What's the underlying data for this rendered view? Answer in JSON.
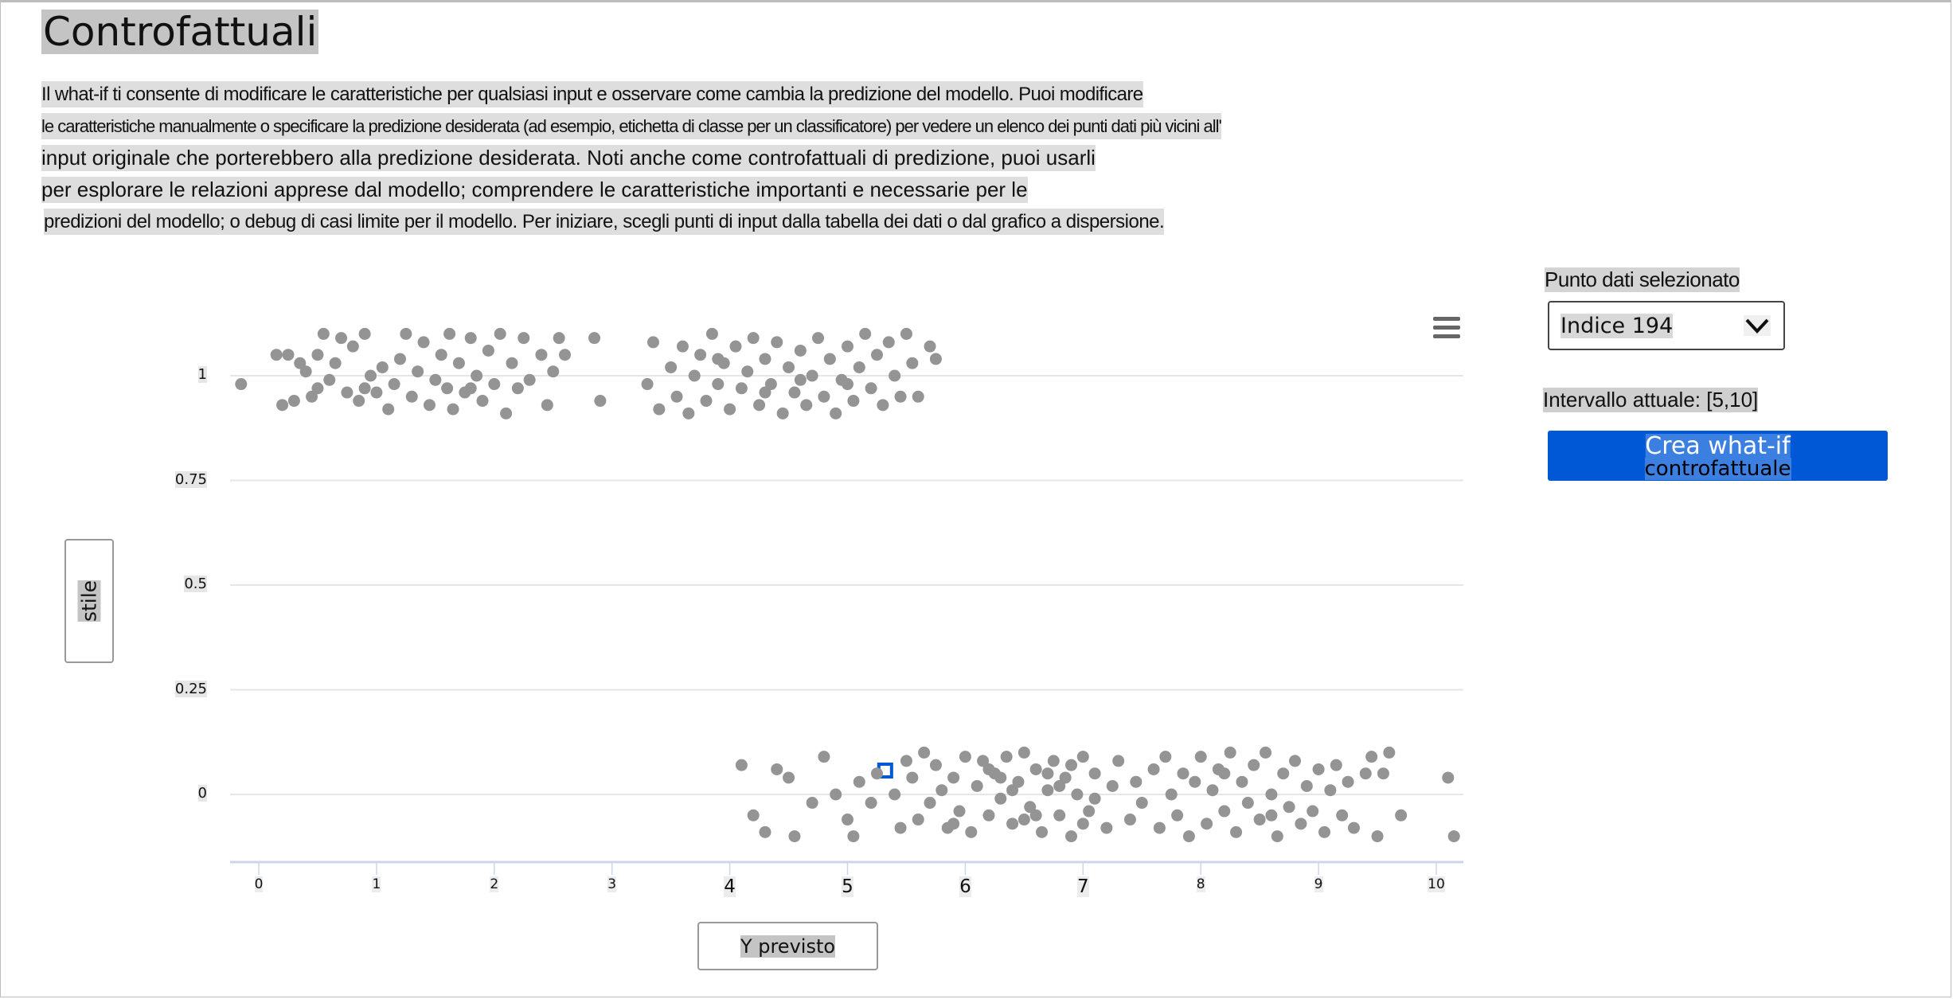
{
  "header": {
    "title": "Controfattuali"
  },
  "description": [
    "Il what-if ti consente di modificare le caratteristiche per qualsiasi input e osservare come cambia la predizione del modello. Puoi modificare",
    "le caratteristiche manualmente o specificare la predizione desiderata (ad esempio, etichetta di classe per un classificatore) per vedere un elenco dei punti dati più vicini all'",
    "input originale che porterebbero alla predizione desiderata. Noti anche come controfattuali di predizione, puoi usarli",
    "per esplorare le relazioni apprese dal modello; comprendere le caratteristiche importanti e necessarie per le",
    "predizioni del modello; o debug di casi limite per il modello. Per iniziare, scegli punti di input dalla tabella dei dati o dal grafico a dispersione."
  ],
  "panel": {
    "selected_label": "Punto dati selezionato",
    "selected_value": "Indice 194",
    "range_label": "Intervallo attuale: [5,10]",
    "button_line1": "Crea what-if",
    "button_line2": "controfattuale"
  },
  "icons": {
    "menu": "hamburger-menu-icon",
    "dropdown": "chevron-down-icon"
  },
  "colors": {
    "point": "#949494",
    "selected": "#0058d6",
    "button": "#0058d6",
    "grid": "#e6e6e6",
    "axis": "#ccd6eb"
  },
  "chart_data": {
    "type": "scatter",
    "xlabel": "Y previsto",
    "ylabel": "stile",
    "xlim": [
      -0.24,
      10.23
    ],
    "ylim": [
      -0.16,
      1.2
    ],
    "x_ticks": [
      "0",
      "1",
      "2",
      "3",
      "4",
      "5",
      "6",
      "7",
      "8",
      "9",
      "10"
    ],
    "y_ticks": [
      "0",
      "0.25",
      "0.5",
      "0.75",
      "1"
    ],
    "grid": "horizontal",
    "selected_point": [
      5.32,
      0.057
    ],
    "points": [
      [
        -0.15,
        0.98
      ],
      [
        0.15,
        1.05
      ],
      [
        0.2,
        0.93
      ],
      [
        0.25,
        1.05
      ],
      [
        0.3,
        0.94
      ],
      [
        0.35,
        1.03
      ],
      [
        0.4,
        1.01
      ],
      [
        0.45,
        0.95
      ],
      [
        0.5,
        0.97
      ],
      [
        0.5,
        1.05
      ],
      [
        0.55,
        1.1
      ],
      [
        0.6,
        0.99
      ],
      [
        0.65,
        1.03
      ],
      [
        0.7,
        1.09
      ],
      [
        0.75,
        0.96
      ],
      [
        0.8,
        1.07
      ],
      [
        0.85,
        0.94
      ],
      [
        0.9,
        1.1
      ],
      [
        0.95,
        1.0
      ],
      [
        1.0,
        0.96
      ],
      [
        1.05,
        1.02
      ],
      [
        1.1,
        0.92
      ],
      [
        1.15,
        0.98
      ],
      [
        1.2,
        1.04
      ],
      [
        1.25,
        1.1
      ],
      [
        1.3,
        0.95
      ],
      [
        1.35,
        1.01
      ],
      [
        1.4,
        1.08
      ],
      [
        1.45,
        0.93
      ],
      [
        1.5,
        0.99
      ],
      [
        1.55,
        1.05
      ],
      [
        1.6,
        0.97
      ],
      [
        1.62,
        1.1
      ],
      [
        1.65,
        0.92
      ],
      [
        1.7,
        1.03
      ],
      [
        1.75,
        0.96
      ],
      [
        1.8,
        1.09
      ],
      [
        1.85,
        1.0
      ],
      [
        1.9,
        0.94
      ],
      [
        1.95,
        1.06
      ],
      [
        2.0,
        0.98
      ],
      [
        2.05,
        1.1
      ],
      [
        2.1,
        0.91
      ],
      [
        2.15,
        1.03
      ],
      [
        2.2,
        0.97
      ],
      [
        2.25,
        1.09
      ],
      [
        2.3,
        0.99
      ],
      [
        2.4,
        1.05
      ],
      [
        2.45,
        0.93
      ],
      [
        2.5,
        1.01
      ],
      [
        2.55,
        1.09
      ],
      [
        2.6,
        1.05
      ],
      [
        2.85,
        1.09
      ],
      [
        2.9,
        0.94
      ],
      [
        3.3,
        0.98
      ],
      [
        3.35,
        1.08
      ],
      [
        3.4,
        0.92
      ],
      [
        3.5,
        1.02
      ],
      [
        3.55,
        0.95
      ],
      [
        3.6,
        1.07
      ],
      [
        3.65,
        0.91
      ],
      [
        3.7,
        1.0
      ],
      [
        3.75,
        1.05
      ],
      [
        3.8,
        0.94
      ],
      [
        3.85,
        1.1
      ],
      [
        3.9,
        0.98
      ],
      [
        3.95,
        1.03
      ],
      [
        4.0,
        0.92
      ],
      [
        4.05,
        1.07
      ],
      [
        4.1,
        0.97
      ],
      [
        4.15,
        1.01
      ],
      [
        4.2,
        1.09
      ],
      [
        4.25,
        0.93
      ],
      [
        4.3,
        1.04
      ],
      [
        4.35,
        0.98
      ],
      [
        4.4,
        1.08
      ],
      [
        4.45,
        0.91
      ],
      [
        4.5,
        1.02
      ],
      [
        4.55,
        0.96
      ],
      [
        4.6,
        1.06
      ],
      [
        4.65,
        0.93
      ],
      [
        4.7,
        1.0
      ],
      [
        4.75,
        1.09
      ],
      [
        4.8,
        0.95
      ],
      [
        4.85,
        1.04
      ],
      [
        4.9,
        0.91
      ],
      [
        4.95,
        0.99
      ],
      [
        5.0,
        1.07
      ],
      [
        5.05,
        0.94
      ],
      [
        5.1,
        1.02
      ],
      [
        5.15,
        1.1
      ],
      [
        5.2,
        0.97
      ],
      [
        5.25,
        1.05
      ],
      [
        5.3,
        0.93
      ],
      [
        5.35,
        1.08
      ],
      [
        5.4,
        1.0
      ],
      [
        5.45,
        0.95
      ],
      [
        5.5,
        1.1
      ],
      [
        5.55,
        1.03
      ],
      [
        5.6,
        0.95
      ],
      [
        5.7,
        1.07
      ],
      [
        5.75,
        1.04
      ],
      [
        4.3,
        0.96
      ],
      [
        4.6,
        0.99
      ],
      [
        3.9,
        1.04
      ],
      [
        5.0,
        0.98
      ],
      [
        1.8,
        0.97
      ],
      [
        0.9,
        0.97
      ],
      [
        4.1,
        0.07
      ],
      [
        4.2,
        -0.05
      ],
      [
        4.3,
        -0.09
      ],
      [
        4.4,
        0.06
      ],
      [
        4.5,
        0.04
      ],
      [
        4.55,
        -0.1
      ],
      [
        4.7,
        -0.02
      ],
      [
        4.8,
        0.09
      ],
      [
        4.9,
        0.0
      ],
      [
        5.0,
        -0.06
      ],
      [
        5.05,
        -0.1
      ],
      [
        5.1,
        0.03
      ],
      [
        5.2,
        -0.02
      ],
      [
        5.25,
        0.05
      ],
      [
        5.4,
        0.0
      ],
      [
        5.45,
        -0.08
      ],
      [
        5.5,
        0.08
      ],
      [
        5.55,
        0.04
      ],
      [
        5.6,
        -0.06
      ],
      [
        5.65,
        0.1
      ],
      [
        5.7,
        -0.02
      ],
      [
        5.75,
        0.07
      ],
      [
        5.8,
        0.01
      ],
      [
        5.85,
        -0.08
      ],
      [
        5.9,
        0.04
      ],
      [
        5.95,
        -0.04
      ],
      [
        6.0,
        0.09
      ],
      [
        6.05,
        -0.09
      ],
      [
        6.1,
        0.02
      ],
      [
        6.15,
        0.08
      ],
      [
        6.2,
        -0.05
      ],
      [
        6.25,
        0.05
      ],
      [
        6.3,
        -0.01
      ],
      [
        6.35,
        0.09
      ],
      [
        6.4,
        -0.07
      ],
      [
        6.45,
        0.03
      ],
      [
        6.5,
        0.1
      ],
      [
        6.55,
        -0.03
      ],
      [
        6.6,
        0.06
      ],
      [
        6.65,
        -0.09
      ],
      [
        6.7,
        0.01
      ],
      [
        6.75,
        0.08
      ],
      [
        6.8,
        -0.05
      ],
      [
        6.85,
        0.04
      ],
      [
        6.9,
        -0.1
      ],
      [
        6.95,
        0.0
      ],
      [
        7.0,
        0.09
      ],
      [
        7.05,
        -0.04
      ],
      [
        7.1,
        0.05
      ],
      [
        7.2,
        -0.08
      ],
      [
        7.25,
        0.02
      ],
      [
        7.3,
        0.08
      ],
      [
        7.4,
        -0.06
      ],
      [
        7.45,
        0.03
      ],
      [
        7.5,
        -0.02
      ],
      [
        7.6,
        0.06
      ],
      [
        7.65,
        -0.08
      ],
      [
        7.7,
        0.09
      ],
      [
        7.75,
        0.0
      ],
      [
        7.8,
        -0.05
      ],
      [
        7.85,
        0.05
      ],
      [
        7.9,
        -0.1
      ],
      [
        7.95,
        0.03
      ],
      [
        8.0,
        0.09
      ],
      [
        8.05,
        -0.07
      ],
      [
        8.1,
        0.01
      ],
      [
        8.15,
        0.06
      ],
      [
        8.2,
        -0.04
      ],
      [
        8.25,
        0.1
      ],
      [
        8.3,
        -0.09
      ],
      [
        8.35,
        0.03
      ],
      [
        8.4,
        -0.02
      ],
      [
        8.45,
        0.07
      ],
      [
        8.5,
        -0.06
      ],
      [
        8.55,
        0.1
      ],
      [
        8.6,
        0.0
      ],
      [
        8.65,
        -0.1
      ],
      [
        8.7,
        0.05
      ],
      [
        8.75,
        -0.03
      ],
      [
        8.8,
        0.08
      ],
      [
        8.85,
        -0.07
      ],
      [
        8.9,
        0.02
      ],
      [
        8.95,
        -0.04
      ],
      [
        9.0,
        0.06
      ],
      [
        9.05,
        -0.09
      ],
      [
        9.1,
        0.01
      ],
      [
        9.15,
        0.07
      ],
      [
        9.2,
        -0.05
      ],
      [
        9.25,
        0.03
      ],
      [
        9.3,
        -0.08
      ],
      [
        9.4,
        0.05
      ],
      [
        9.45,
        0.09
      ],
      [
        9.5,
        -0.1
      ],
      [
        9.55,
        0.05
      ],
      [
        9.6,
        0.1
      ],
      [
        9.7,
        -0.05
      ],
      [
        10.1,
        0.04
      ],
      [
        10.15,
        -0.1
      ],
      [
        6.3,
        0.04
      ],
      [
        6.6,
        -0.05
      ],
      [
        6.8,
        0.02
      ],
      [
        7.0,
        -0.07
      ],
      [
        6.5,
        -0.06
      ],
      [
        6.2,
        0.06
      ],
      [
        5.9,
        -0.07
      ],
      [
        6.7,
        0.05
      ],
      [
        7.1,
        -0.01
      ],
      [
        8.2,
        0.05
      ],
      [
        8.6,
        -0.05
      ],
      [
        6.4,
        0.01
      ],
      [
        6.9,
        0.07
      ]
    ]
  }
}
